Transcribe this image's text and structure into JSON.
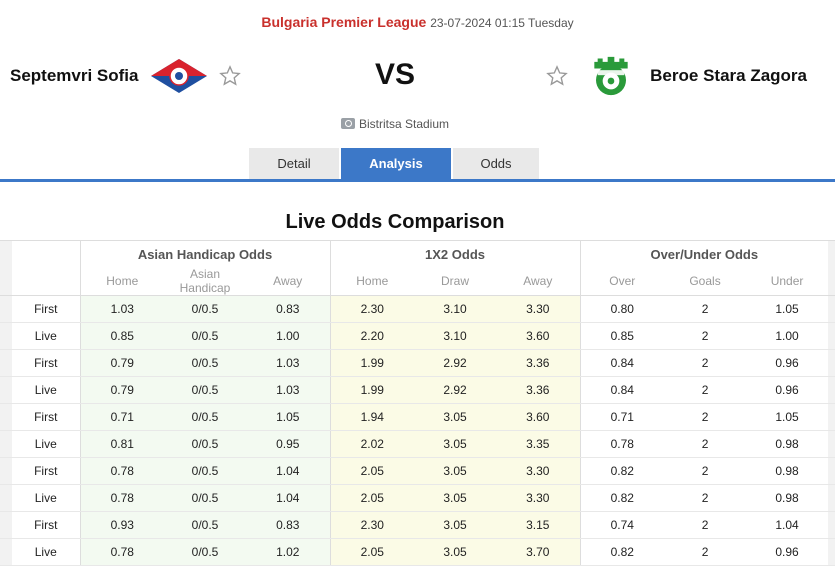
{
  "header": {
    "league": "Bulgaria Premier League",
    "datetime": "23-07-2024 01:15 Tuesday",
    "vs": "VS",
    "venue": "Bistritsa Stadium"
  },
  "home_team": {
    "name": "Septemvri Sofia",
    "logo_icon": "septemvri-crest-icon",
    "colors": [
      "#d9232e",
      "#1f4fa0",
      "#ffffff"
    ]
  },
  "away_team": {
    "name": "Beroe Stara Zagora",
    "logo_icon": "beroe-crest-icon",
    "colors": [
      "#2a9a3a",
      "#ffffff"
    ]
  },
  "tabs": [
    {
      "label": "Detail",
      "active": false
    },
    {
      "label": "Analysis",
      "active": true
    },
    {
      "label": "Odds",
      "active": false
    }
  ],
  "section_title": "Live Odds Comparison",
  "table": {
    "groups": [
      "Asian Handicap Odds",
      "1X2 Odds",
      "Over/Under Odds"
    ],
    "columns": [
      "Home",
      "Asian Handicap",
      "Away",
      "Home",
      "Draw",
      "Away",
      "Over",
      "Goals",
      "Under"
    ],
    "rows": [
      {
        "type": "First",
        "v": [
          "1.03",
          "0/0.5",
          "0.83",
          "2.30",
          "3.10",
          "3.30",
          "0.80",
          "2",
          "1.05"
        ]
      },
      {
        "type": "Live",
        "v": [
          "0.85",
          "0/0.5",
          "1.00",
          "2.20",
          "3.10",
          "3.60",
          "0.85",
          "2",
          "1.00"
        ]
      },
      {
        "type": "First",
        "v": [
          "0.79",
          "0/0.5",
          "1.03",
          "1.99",
          "2.92",
          "3.36",
          "0.84",
          "2",
          "0.96"
        ]
      },
      {
        "type": "Live",
        "v": [
          "0.79",
          "0/0.5",
          "1.03",
          "1.99",
          "2.92",
          "3.36",
          "0.84",
          "2",
          "0.96"
        ]
      },
      {
        "type": "First",
        "v": [
          "0.71",
          "0/0.5",
          "1.05",
          "1.94",
          "3.05",
          "3.60",
          "0.71",
          "2",
          "1.05"
        ]
      },
      {
        "type": "Live",
        "v": [
          "0.81",
          "0/0.5",
          "0.95",
          "2.02",
          "3.05",
          "3.35",
          "0.78",
          "2",
          "0.98"
        ]
      },
      {
        "type": "First",
        "v": [
          "0.78",
          "0/0.5",
          "1.04",
          "2.05",
          "3.05",
          "3.30",
          "0.82",
          "2",
          "0.98"
        ]
      },
      {
        "type": "Live",
        "v": [
          "0.78",
          "0/0.5",
          "1.04",
          "2.05",
          "3.05",
          "3.30",
          "0.82",
          "2",
          "0.98"
        ]
      },
      {
        "type": "First",
        "v": [
          "0.93",
          "0/0.5",
          "0.83",
          "2.30",
          "3.05",
          "3.15",
          "0.74",
          "2",
          "1.04"
        ]
      },
      {
        "type": "Live",
        "v": [
          "0.78",
          "0/0.5",
          "1.02",
          "2.05",
          "3.05",
          "3.70",
          "0.82",
          "2",
          "0.96"
        ]
      }
    ]
  },
  "colors": {
    "accent": "#3c78c8",
    "league": "#c9302c",
    "ah_bg": "#f3faf1",
    "x12_bg": "#fbfbe6"
  }
}
